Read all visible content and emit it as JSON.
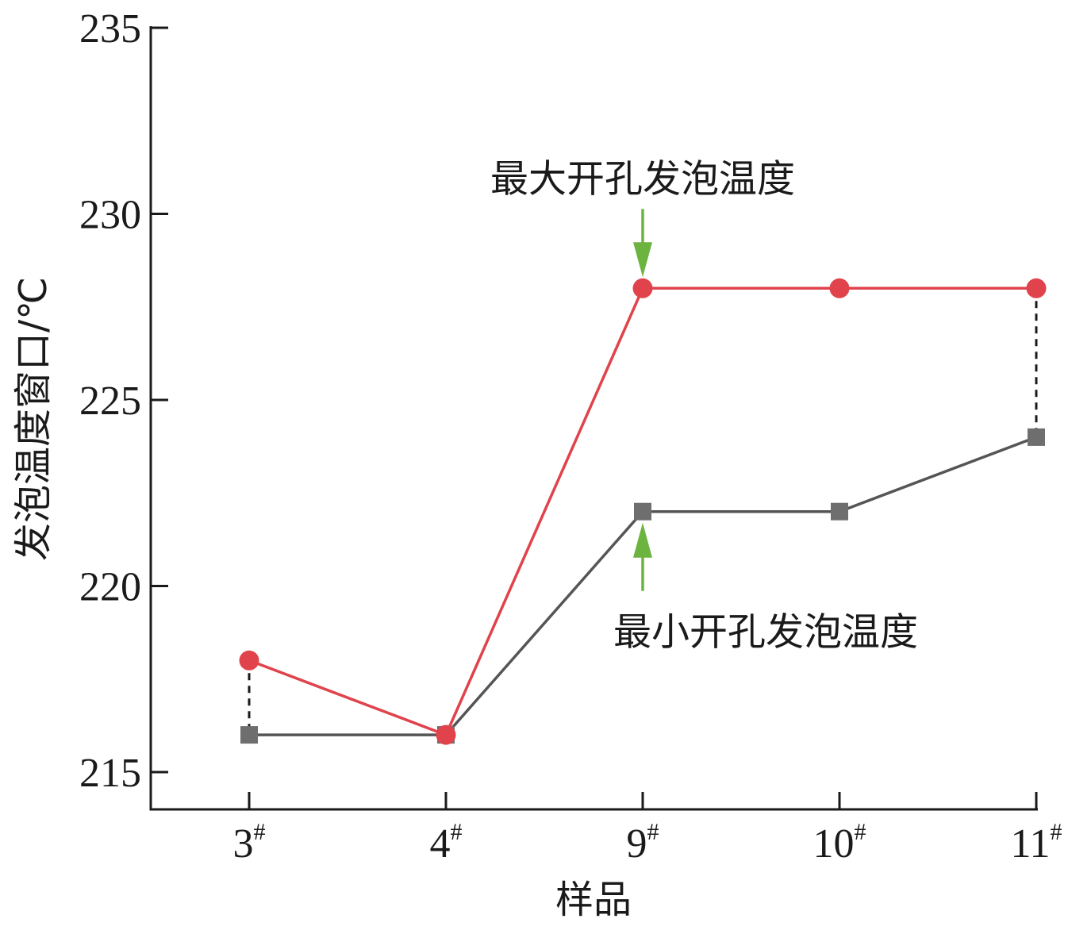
{
  "chart_data": {
    "type": "line",
    "categories": [
      "3",
      "4",
      "9",
      "10",
      "11"
    ],
    "category_suffix": "#",
    "xlabel": "样品",
    "ylabel": "发泡温度窗口/℃",
    "ylim": [
      214,
      235
    ],
    "yticks": [
      215,
      220,
      225,
      230,
      235
    ],
    "grid": false,
    "series": [
      {
        "key": "max",
        "values": [
          218,
          216,
          228,
          228,
          228
        ],
        "color": "#e0434b",
        "marker": "circle"
      },
      {
        "key": "min",
        "values": [
          216,
          216,
          222,
          222,
          224
        ],
        "color": "#555555",
        "marker_color": "#6e6e6e",
        "marker": "square"
      }
    ],
    "dashed_connectors_at": [
      "3",
      "11"
    ],
    "annotations": [
      {
        "text": "最大开孔发泡温度",
        "category": "9",
        "value": 228,
        "arrow_color": "#6db33f",
        "direction": "down"
      },
      {
        "text": "最小开孔发泡温度",
        "category": "9",
        "value": 222,
        "arrow_color": "#6db33f",
        "direction": "up"
      }
    ]
  }
}
